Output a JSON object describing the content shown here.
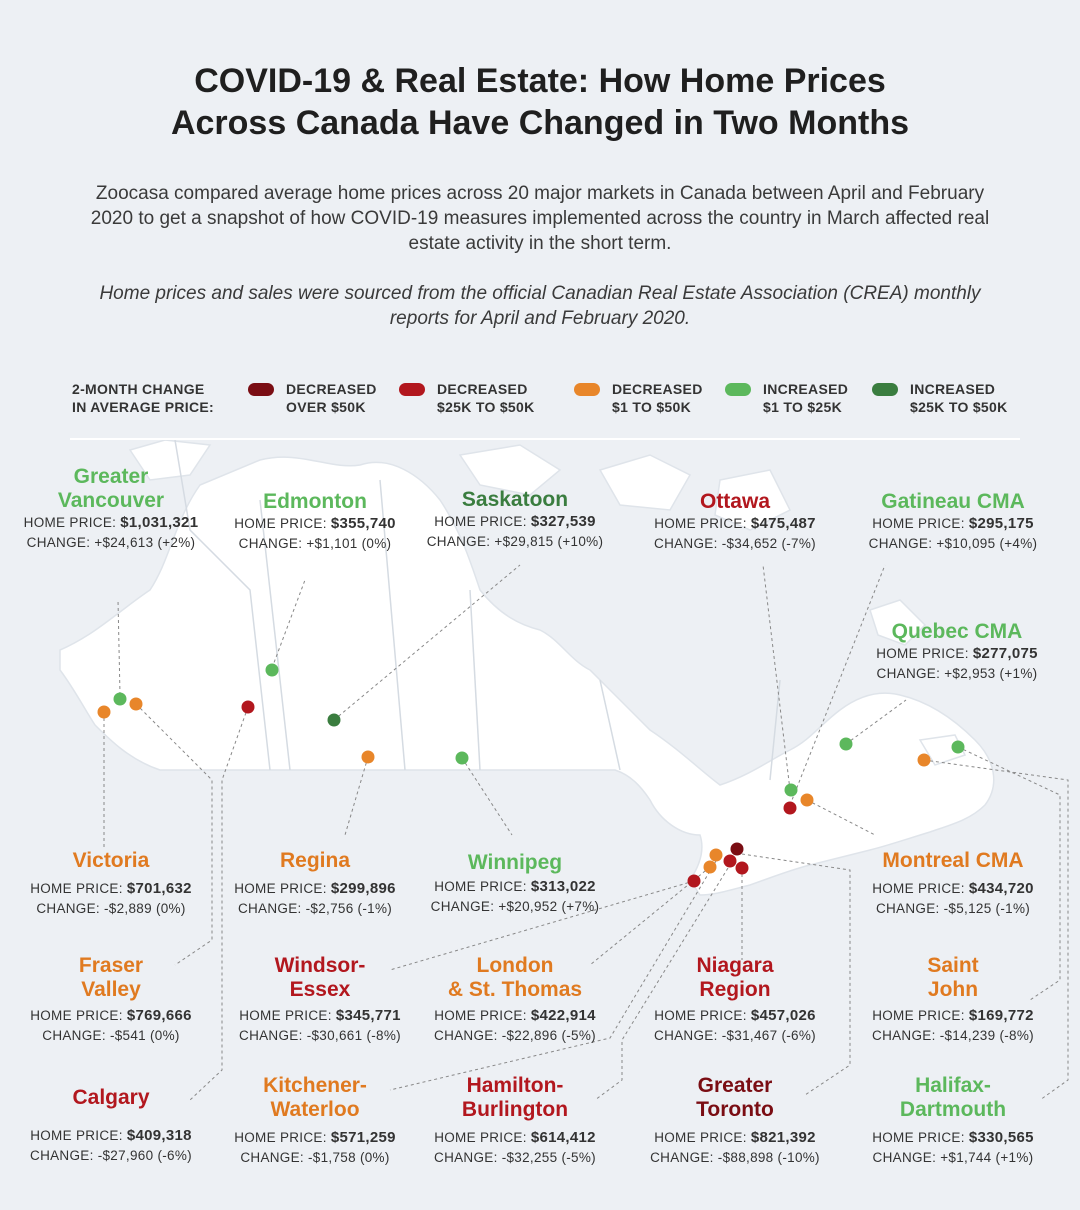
{
  "header": {
    "title_line1": "COVID-19 & Real Estate: How Home Prices",
    "title_line2": "Across Canada Have Changed in Two Months",
    "intro": "Zoocasa compared average home prices across 20 major markets in Canada between April and February 2020 to get a snapshot of how COVID-19 measures implemented across the country in March affected real estate activity in the short term.",
    "source_note": "Home prices and sales were sourced from the official Canadian Real Estate Association (CREA) monthly reports for April and February 2020."
  },
  "legend": {
    "title_line1": "2-MONTH CHANGE",
    "title_line2": "IN AVERAGE PRICE:",
    "items": [
      {
        "line1": "DECREASED",
        "line2": "OVER $50K",
        "color": "#7a0d13"
      },
      {
        "line1": "DECREASED",
        "line2": "$25K TO $50K",
        "color": "#b2171e"
      },
      {
        "line1": "DECREASED",
        "line2": "$1 TO $50K",
        "color": "#e8862a"
      },
      {
        "line1": "INCREASED",
        "line2": "$1 TO $25K",
        "color": "#5cb85c"
      },
      {
        "line1": "INCREASED",
        "line2": "$25K TO $50K",
        "color": "#3a7d3f"
      }
    ]
  },
  "labels": {
    "home_price": "HOME PRICE:",
    "change": "CHANGE:"
  },
  "cities": [
    {
      "name_line1": "Greater",
      "name_line2": "Vancouver",
      "price": "$1,031,321",
      "change": "+$24,613 (+2%)",
      "category": "green"
    },
    {
      "name_line1": "Edmonton",
      "name_line2": "",
      "price": "$355,740",
      "change": "+$1,101 (0%)",
      "category": "green"
    },
    {
      "name_line1": "Saskatoon",
      "name_line2": "",
      "price": "$327,539",
      "change": "+$29,815 (+10%)",
      "category": "dark-green"
    },
    {
      "name_line1": "Ottawa",
      "name_line2": "",
      "price": "$475,487",
      "change": "-$34,652 (-7%)",
      "category": "red"
    },
    {
      "name_line1": "Gatineau CMA",
      "name_line2": "",
      "price": "$295,175",
      "change": "+$10,095 (+4%)",
      "category": "green"
    },
    {
      "name_line1": "Quebec CMA",
      "name_line2": "",
      "price": "$277,075",
      "change": "+$2,953 (+1%)",
      "category": "green"
    },
    {
      "name_line1": "Victoria",
      "name_line2": "",
      "price": "$701,632",
      "change": "-$2,889 (0%)",
      "category": "orange"
    },
    {
      "name_line1": "Regina",
      "name_line2": "",
      "price": "$299,896",
      "change": "-$2,756 (-1%)",
      "category": "orange"
    },
    {
      "name_line1": "Winnipeg",
      "name_line2": "",
      "price": "$313,022",
      "change": "+$20,952 (+7%)",
      "category": "green"
    },
    {
      "name_line1": "Montreal CMA",
      "name_line2": "",
      "price": "$434,720",
      "change": "-$5,125 (-1%)",
      "category": "orange"
    },
    {
      "name_line1": "Fraser",
      "name_line2": "Valley",
      "price": "$769,666",
      "change": "-$541 (0%)",
      "category": "orange"
    },
    {
      "name_line1": "Windsor-",
      "name_line2": "Essex",
      "price": "$345,771",
      "change": "-$30,661 (-8%)",
      "category": "red"
    },
    {
      "name_line1": "London",
      "name_line2": "& St. Thomas",
      "price": "$422,914",
      "change": "-$22,896 (-5%)",
      "category": "orange"
    },
    {
      "name_line1": "Niagara",
      "name_line2": "Region",
      "price": "$457,026",
      "change": "-$31,467 (-6%)",
      "category": "red"
    },
    {
      "name_line1": "Saint",
      "name_line2": "John",
      "price": "$169,772",
      "change": "-$14,239 (-8%)",
      "category": "orange"
    },
    {
      "name_line1": "Calgary",
      "name_line2": "",
      "price": "$409,318",
      "change": "-$27,960 (-6%)",
      "category": "red"
    },
    {
      "name_line1": "Kitchener-",
      "name_line2": "Waterloo",
      "price": "$571,259",
      "change": "-$1,758 (0%)",
      "category": "orange"
    },
    {
      "name_line1": "Hamilton-",
      "name_line2": "Burlington",
      "price": "$614,412",
      "change": "-$32,255 (-5%)",
      "category": "red"
    },
    {
      "name_line1": "Greater",
      "name_line2": "Toronto",
      "price": "$821,392",
      "change": "-$88,898 (-10%)",
      "category": "dark-red"
    },
    {
      "name_line1": "Halifax-",
      "name_line2": "Dartmouth",
      "price": "$330,565",
      "change": "+$1,744 (+1%)",
      "category": "green"
    }
  ]
}
